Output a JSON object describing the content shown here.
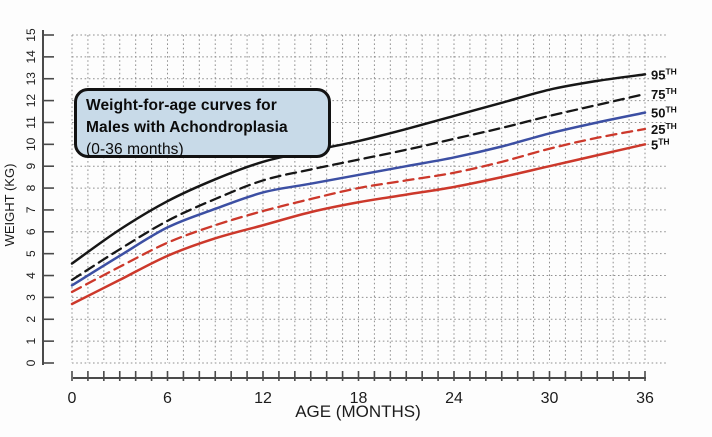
{
  "figure": {
    "title_line1": "Weight-for-age curves for",
    "title_line2": "Males with Achondroplasia",
    "title_line3": "(0-36 months)",
    "title_box_bg": "#c8dae8",
    "background": "#fdfdfd",
    "grid_color": "#909090",
    "axis_color": "#4a4a4a",
    "tick_label_color": "#1c1c1c"
  },
  "chart_data": {
    "type": "line",
    "title": "Weight-for-age curves for Males with Achondroplasia (0-36 months)",
    "xlabel": "AGE (MONTHS)",
    "ylabel": "WEIGHT (KG)",
    "xlim": [
      0,
      36
    ],
    "ylim": [
      0,
      15
    ],
    "x_major_ticks": [
      0,
      6,
      12,
      18,
      24,
      30,
      36
    ],
    "x_minor_step": 1,
    "y_tick_step": 1,
    "grid": "dotted grid every 1 month (x) and 1 kg (y)",
    "legend_position": "labels at right end of each curve",
    "x": [
      0,
      3,
      6,
      9,
      12,
      15,
      18,
      21,
      24,
      27,
      30,
      33,
      36
    ],
    "series": [
      {
        "name": "95th percentile",
        "label": "95",
        "sup": "TH",
        "color": "#161616",
        "style": "solid",
        "values": [
          4.55,
          6.1,
          7.4,
          8.4,
          9.2,
          9.7,
          10.15,
          10.7,
          11.3,
          11.9,
          12.5,
          12.9,
          13.2
        ]
      },
      {
        "name": "75th percentile",
        "label": "75",
        "sup": "TH",
        "color": "#161616",
        "style": "dashed",
        "values": [
          3.8,
          5.2,
          6.5,
          7.5,
          8.35,
          8.85,
          9.3,
          9.75,
          10.25,
          10.75,
          11.3,
          11.8,
          12.3
        ]
      },
      {
        "name": "50th percentile",
        "label": "50",
        "sup": "TH",
        "color": "#3c4fa3",
        "style": "solid",
        "values": [
          3.55,
          4.9,
          6.2,
          7.05,
          7.8,
          8.2,
          8.6,
          9.0,
          9.4,
          9.9,
          10.5,
          11.0,
          11.45
        ]
      },
      {
        "name": "25th percentile",
        "label": "25",
        "sup": "TH",
        "color": "#cc382b",
        "style": "dashed",
        "values": [
          3.25,
          4.4,
          5.5,
          6.3,
          6.95,
          7.5,
          8.0,
          8.35,
          8.7,
          9.2,
          9.8,
          10.3,
          10.7
        ]
      },
      {
        "name": "5th percentile",
        "label": "5",
        "sup": "TH",
        "color": "#cc382b",
        "style": "solid",
        "values": [
          2.7,
          3.8,
          4.9,
          5.7,
          6.3,
          6.9,
          7.35,
          7.7,
          8.05,
          8.5,
          9.0,
          9.5,
          10.0
        ]
      }
    ]
  }
}
